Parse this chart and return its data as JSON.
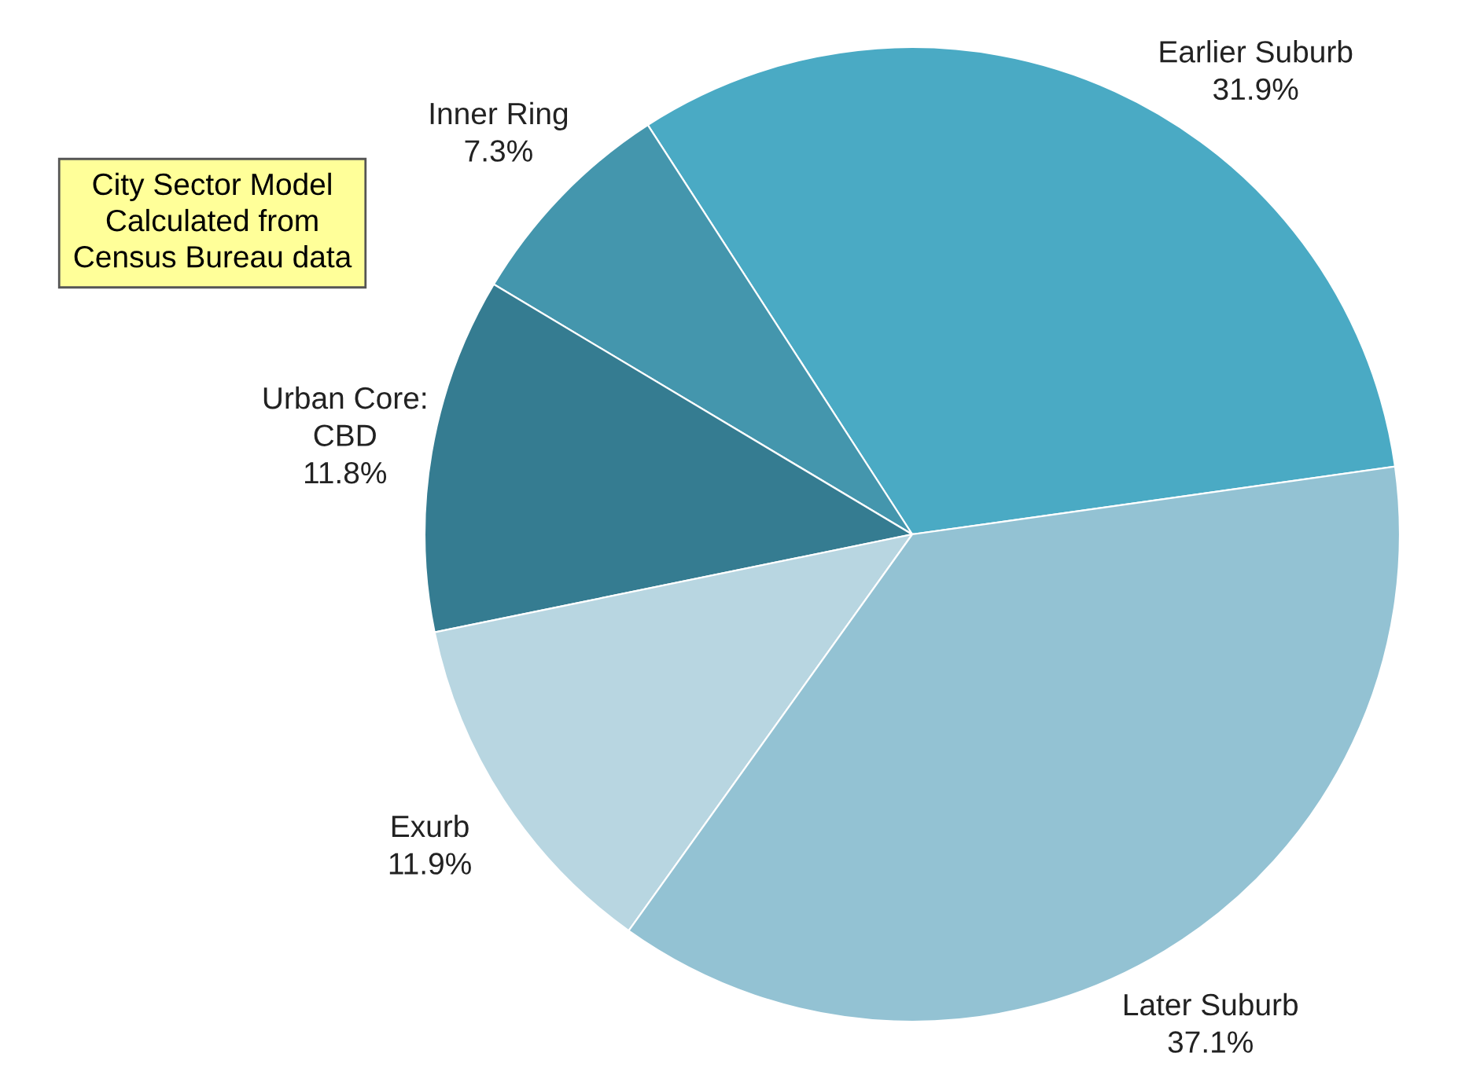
{
  "chart_data": {
    "type": "pie",
    "categories": [
      "Earlier Suburb",
      "Inner Ring",
      "Urban Core:\nCBD",
      "Exurb",
      "Later Suburb"
    ],
    "values": [
      31.9,
      7.3,
      11.8,
      11.9,
      37.1
    ],
    "value_labels": [
      "31.9%",
      "7.3%",
      "11.8%",
      "11.9%",
      "37.1%"
    ],
    "colors": [
      "#4aaac4",
      "#4496ad",
      "#357c91",
      "#b8d6e1",
      "#93c2d3"
    ],
    "annotations": [
      "City Sector Model\nCalculated from\nCensus Bureau data"
    ]
  }
}
